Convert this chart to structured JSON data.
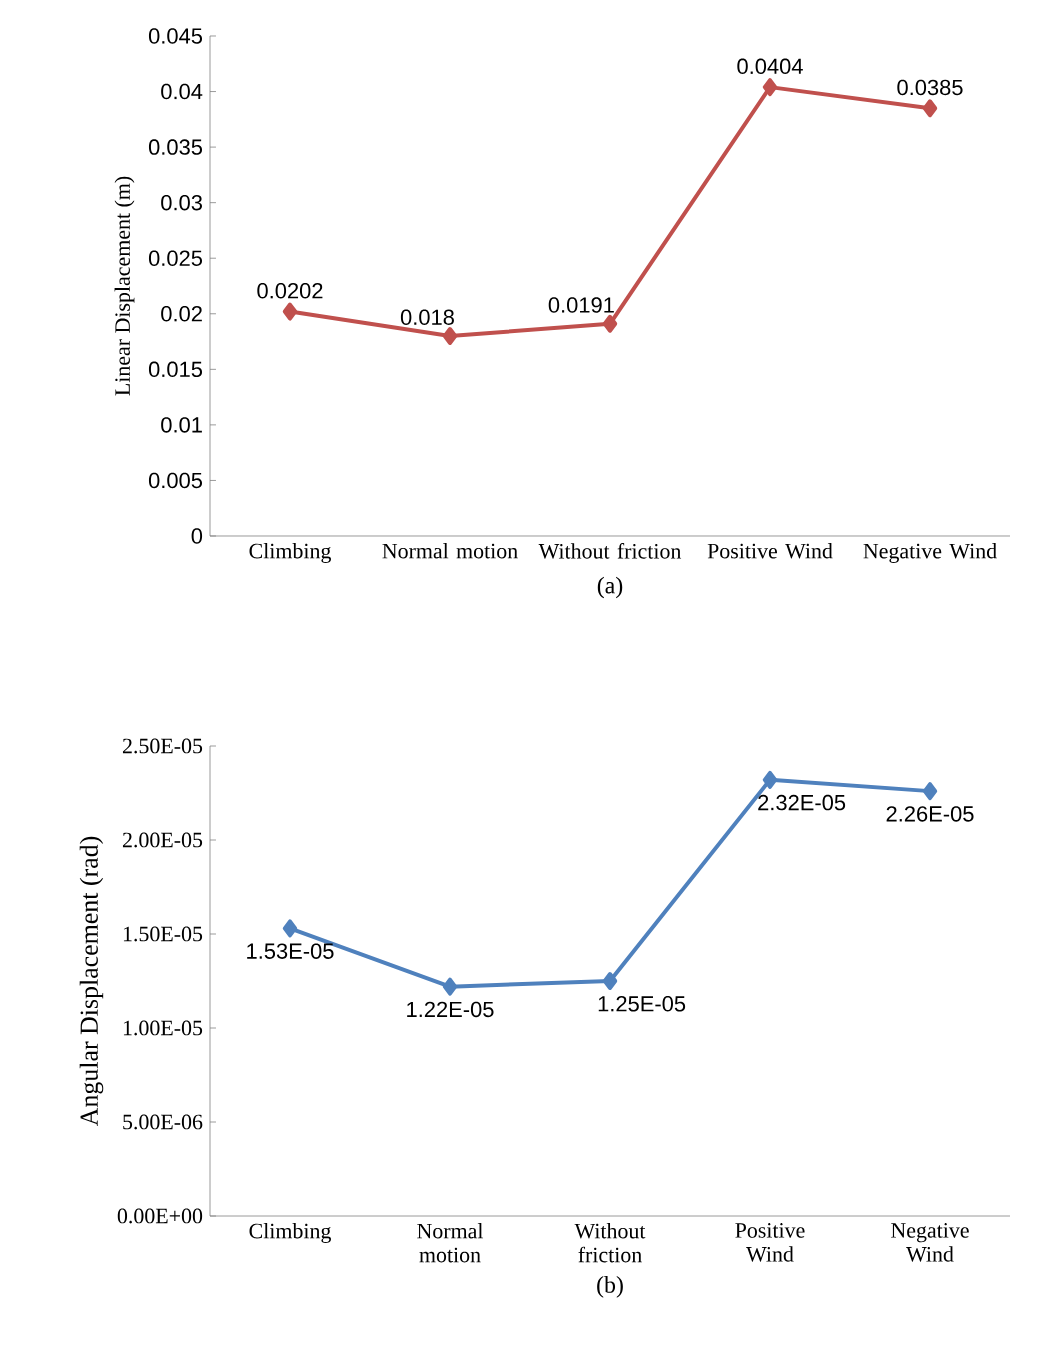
{
  "chart_data": [
    {
      "type": "line",
      "xlabel": "(a)",
      "ylabel": "Linear Displacement (m)",
      "categories": [
        "Climbing",
        "Normal motion",
        "Without friction",
        "Positive Wind",
        "Negative Wind"
      ],
      "series": [
        {
          "color": "#c0504d",
          "values": [
            0.0202,
            0.018,
            0.0191,
            0.0404,
            0.0385
          ],
          "value_labels": [
            "0.0202",
            "0.018",
            "0.0191",
            "0.0404",
            "0.0385"
          ]
        }
      ],
      "ylim": [
        0,
        0.045
      ],
      "yticks": [
        0,
        0.005,
        0.01,
        0.015,
        0.02,
        0.025,
        0.03,
        0.035,
        0.04,
        0.045
      ],
      "marker": "diamond"
    },
    {
      "type": "line",
      "xlabel": "(b)",
      "ylabel": "Angular Displacement (rad)",
      "categories": [
        "Climbing",
        "Normal motion",
        "Without friction",
        "Positive Wind",
        "Negative Wind"
      ],
      "series": [
        {
          "color": "#4f81bd",
          "values": [
            1.53e-05,
            1.22e-05,
            1.25e-05,
            2.32e-05,
            2.26e-05
          ],
          "value_labels": [
            "1.53E-05",
            "1.22E-05",
            "1.25E-05",
            "2.32E-05",
            "2.26E-05"
          ]
        }
      ],
      "ylim": [
        0,
        2.5e-05
      ],
      "yticks": [
        {
          "value": 0,
          "label": "0.00E+00"
        },
        {
          "value": 5e-06,
          "label": "5.00E-06"
        },
        {
          "value": 1e-05,
          "label": "1.00E-05"
        },
        {
          "value": 1.5e-05,
          "label": "1.50E-05"
        },
        {
          "value": 2e-05,
          "label": "2.00E-05"
        },
        {
          "value": 2.5e-05,
          "label": "2.50E-05"
        }
      ],
      "marker": "diamond"
    }
  ]
}
